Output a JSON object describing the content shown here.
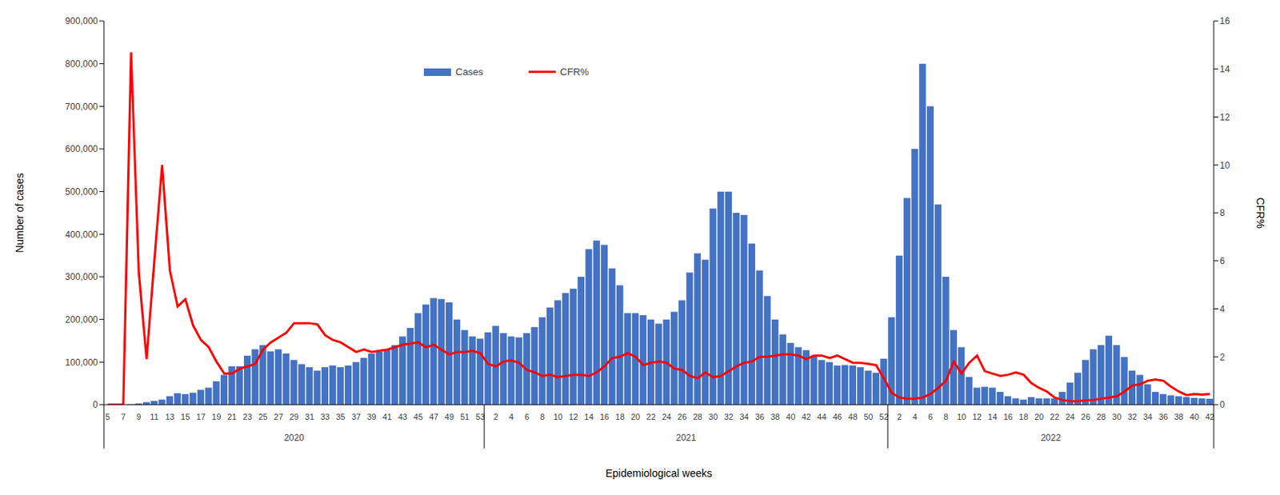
{
  "chart_data": {
    "type": "bar",
    "x_label": "Epidemiological weeks",
    "y_label": "Number of cases",
    "y2_label": "CFR%",
    "legend": "top",
    "grid": false,
    "categories": [
      "5",
      null,
      "7",
      null,
      "9",
      null,
      "11",
      null,
      "13",
      null,
      "15",
      null,
      "17",
      null,
      "19",
      null,
      "21",
      null,
      "23",
      null,
      "25",
      null,
      "27",
      null,
      "29",
      null,
      "31",
      null,
      "33",
      null,
      "35",
      null,
      "37",
      null,
      "39",
      null,
      "41",
      null,
      "43",
      null,
      "45",
      null,
      "47",
      null,
      "49",
      null,
      "51",
      null,
      "53",
      null,
      "2",
      null,
      "4",
      null,
      "6",
      null,
      "8",
      null,
      "10",
      null,
      "12",
      null,
      "14",
      null,
      "16",
      null,
      "18",
      null,
      "20",
      null,
      "22",
      null,
      "24",
      null,
      "26",
      null,
      "28",
      null,
      "30",
      null,
      "32",
      null,
      "34",
      null,
      "36",
      null,
      "38",
      null,
      "40",
      null,
      "42",
      null,
      "44",
      null,
      "46",
      null,
      "48",
      null,
      "50",
      null,
      "52",
      null,
      "2",
      null,
      "4",
      null,
      "6",
      null,
      "8",
      null,
      "10",
      null,
      "12",
      null,
      "14",
      null,
      "16",
      null,
      "18",
      null,
      "20",
      null,
      "22",
      null,
      "24",
      null,
      "26",
      null,
      "28",
      null,
      "30",
      null,
      "32",
      null,
      "34",
      null,
      "36",
      null,
      "38",
      null,
      "40",
      null,
      "42"
    ],
    "year_groups": [
      {
        "label": "2020",
        "weeks": 49
      },
      {
        "label": "2021",
        "weeks": 52
      },
      {
        "label": "2022",
        "weeks": 42
      }
    ],
    "series": [
      {
        "name": "Cases",
        "type": "bar",
        "color": "#4472c4",
        "values": [
          0,
          0,
          0,
          1000,
          3000,
          6000,
          9000,
          12000,
          20000,
          27000,
          25000,
          28000,
          35000,
          40000,
          55000,
          70000,
          90000,
          90000,
          115000,
          130000,
          140000,
          125000,
          130000,
          120000,
          105000,
          95000,
          88000,
          80000,
          88000,
          92000,
          88000,
          92000,
          100000,
          110000,
          120000,
          125000,
          130000,
          140000,
          160000,
          180000,
          215000,
          235000,
          250000,
          248000,
          240000,
          200000,
          175000,
          160000,
          155000,
          170000,
          185000,
          168000,
          160000,
          158000,
          168000,
          182000,
          205000,
          228000,
          245000,
          262000,
          272000,
          300000,
          365000,
          385000,
          375000,
          320000,
          280000,
          215000,
          215000,
          210000,
          200000,
          190000,
          200000,
          218000,
          245000,
          310000,
          355000,
          340000,
          460000,
          500000,
          500000,
          450000,
          445000,
          378000,
          315000,
          255000,
          200000,
          165000,
          145000,
          135000,
          128000,
          115000,
          105000,
          100000,
          92000,
          93000,
          92000,
          88000,
          80000,
          75000,
          108000,
          205000,
          350000,
          485000,
          600000,
          800000,
          700000,
          470000,
          300000,
          175000,
          135000,
          65000,
          40000,
          42000,
          40000,
          30000,
          20000,
          15000,
          12000,
          18000,
          15000,
          15000,
          15000,
          30000,
          52000,
          75000,
          105000,
          130000,
          140000,
          162000,
          140000,
          112000,
          80000,
          70000,
          48000,
          30000,
          25000,
          22000,
          20000,
          18000,
          16000,
          15000,
          14000
        ]
      },
      {
        "name": "CFR%",
        "type": "line",
        "color": "#ff0000",
        "axis": "y2",
        "values": [
          0,
          0,
          0,
          14.7,
          5.5,
          1.9,
          6,
          10,
          5.6,
          4.1,
          4.4,
          3.3,
          2.7,
          2.4,
          1.8,
          1.3,
          1.3,
          1.5,
          1.6,
          1.7,
          2.3,
          2.6,
          2.8,
          3.0,
          3.4,
          3.4,
          3.4,
          3.35,
          2.9,
          2.7,
          2.6,
          2.4,
          2.2,
          2.3,
          2.2,
          2.25,
          2.3,
          2.4,
          2.5,
          2.55,
          2.6,
          2.4,
          2.5,
          2.3,
          2.1,
          2.2,
          2.2,
          2.25,
          2.15,
          1.7,
          1.6,
          1.8,
          1.85,
          1.75,
          1.45,
          1.35,
          1.2,
          1.25,
          1.15,
          1.2,
          1.25,
          1.25,
          1.2,
          1.35,
          1.6,
          1.95,
          2.0,
          2.15,
          2.0,
          1.65,
          1.75,
          1.8,
          1.75,
          1.5,
          1.45,
          1.2,
          1.1,
          1.35,
          1.15,
          1.2,
          1.4,
          1.6,
          1.75,
          1.8,
          2.0,
          2.0,
          2.05,
          2.1,
          2.1,
          2.05,
          1.9,
          2.05,
          2.05,
          1.95,
          2.05,
          1.9,
          1.75,
          1.75,
          1.7,
          1.65,
          1.1,
          0.5,
          0.3,
          0.25,
          0.25,
          0.3,
          0.45,
          0.7,
          1.0,
          1.8,
          1.3,
          1.75,
          2.05,
          1.4,
          1.3,
          1.2,
          1.25,
          1.35,
          1.25,
          0.9,
          0.7,
          0.55,
          0.3,
          0.2,
          0.15,
          0.15,
          0.18,
          0.2,
          0.25,
          0.3,
          0.35,
          0.55,
          0.8,
          0.85,
          1.0,
          1.05,
          1.0,
          0.75,
          0.55,
          0.4,
          0.45,
          0.42,
          0.45
        ]
      }
    ],
    "ylim": [
      0,
      900000
    ],
    "yticks": [
      0,
      {
        "value": 100000,
        "label": "100,000"
      },
      {
        "value": 200000,
        "label": "200,000"
      },
      {
        "value": 300000,
        "label": "300,000"
      },
      {
        "value": 400000,
        "label": "400,000"
      },
      {
        "value": 500000,
        "label": "500,000"
      },
      {
        "value": 600000,
        "label": "600,000"
      },
      {
        "value": 700000,
        "label": "700,000"
      },
      {
        "value": 800000,
        "label": "800,000"
      },
      {
        "value": 900000,
        "label": "900,000"
      }
    ],
    "y2lim": [
      0,
      16
    ],
    "y2ticks": [
      0,
      2,
      4,
      6,
      8,
      10,
      12,
      14,
      16
    ]
  }
}
